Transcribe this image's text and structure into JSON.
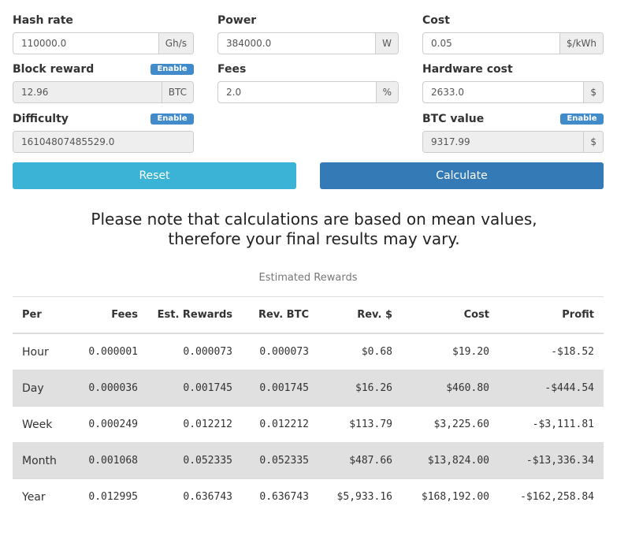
{
  "form": {
    "fields": [
      {
        "label": "Hash rate",
        "value": "110000.0",
        "unit": "Gh/s"
      },
      {
        "label": "Power",
        "value": "384000.0",
        "unit": "W"
      },
      {
        "label": "Cost",
        "value": "0.05",
        "unit": "$/kWh"
      },
      {
        "label": "Block reward",
        "badge": "Enable",
        "value": "12.96",
        "unit": "BTC",
        "disabled": true
      },
      {
        "label": "Fees",
        "value": "2.0",
        "unit": "%"
      },
      {
        "label": "Hardware cost",
        "value": "2633.0",
        "unit": "$"
      },
      {
        "label": "Difficulty",
        "badge": "Enable",
        "value": "16104807485529.0",
        "disabled": true
      },
      {
        "label": "BTC value",
        "badge": "Enable",
        "value": "9317.99",
        "unit": "$",
        "disabled": true
      }
    ],
    "buttons": [
      "Reset",
      "Calculate"
    ]
  },
  "note": [
    "Please note that calculations are based on mean values,",
    "therefore your final results may vary."
  ],
  "table": {
    "caption": "Estimated Rewards",
    "columns": [
      "Per",
      "Fees",
      "Est. Rewards",
      "Rev. BTC",
      "Rev. $",
      "Cost",
      "Profit"
    ],
    "rows": [
      [
        "Hour",
        "0.000001",
        "0.000073",
        "0.000073",
        "$0.68",
        "$19.20",
        "-$18.52"
      ],
      [
        "Day",
        "0.000036",
        "0.001745",
        "0.001745",
        "$16.26",
        "$460.80",
        "-$444.54"
      ],
      [
        "Week",
        "0.000249",
        "0.012212",
        "0.012212",
        "$113.79",
        "$3,225.60",
        "-$3,111.81"
      ],
      [
        "Month",
        "0.001068",
        "0.052335",
        "0.052335",
        "$487.66",
        "$13,824.00",
        "-$13,336.34"
      ],
      [
        "Year",
        "0.012995",
        "0.636743",
        "0.636743",
        "$5,933.16",
        "$168,192.00",
        "-$162,258.84"
      ]
    ]
  }
}
